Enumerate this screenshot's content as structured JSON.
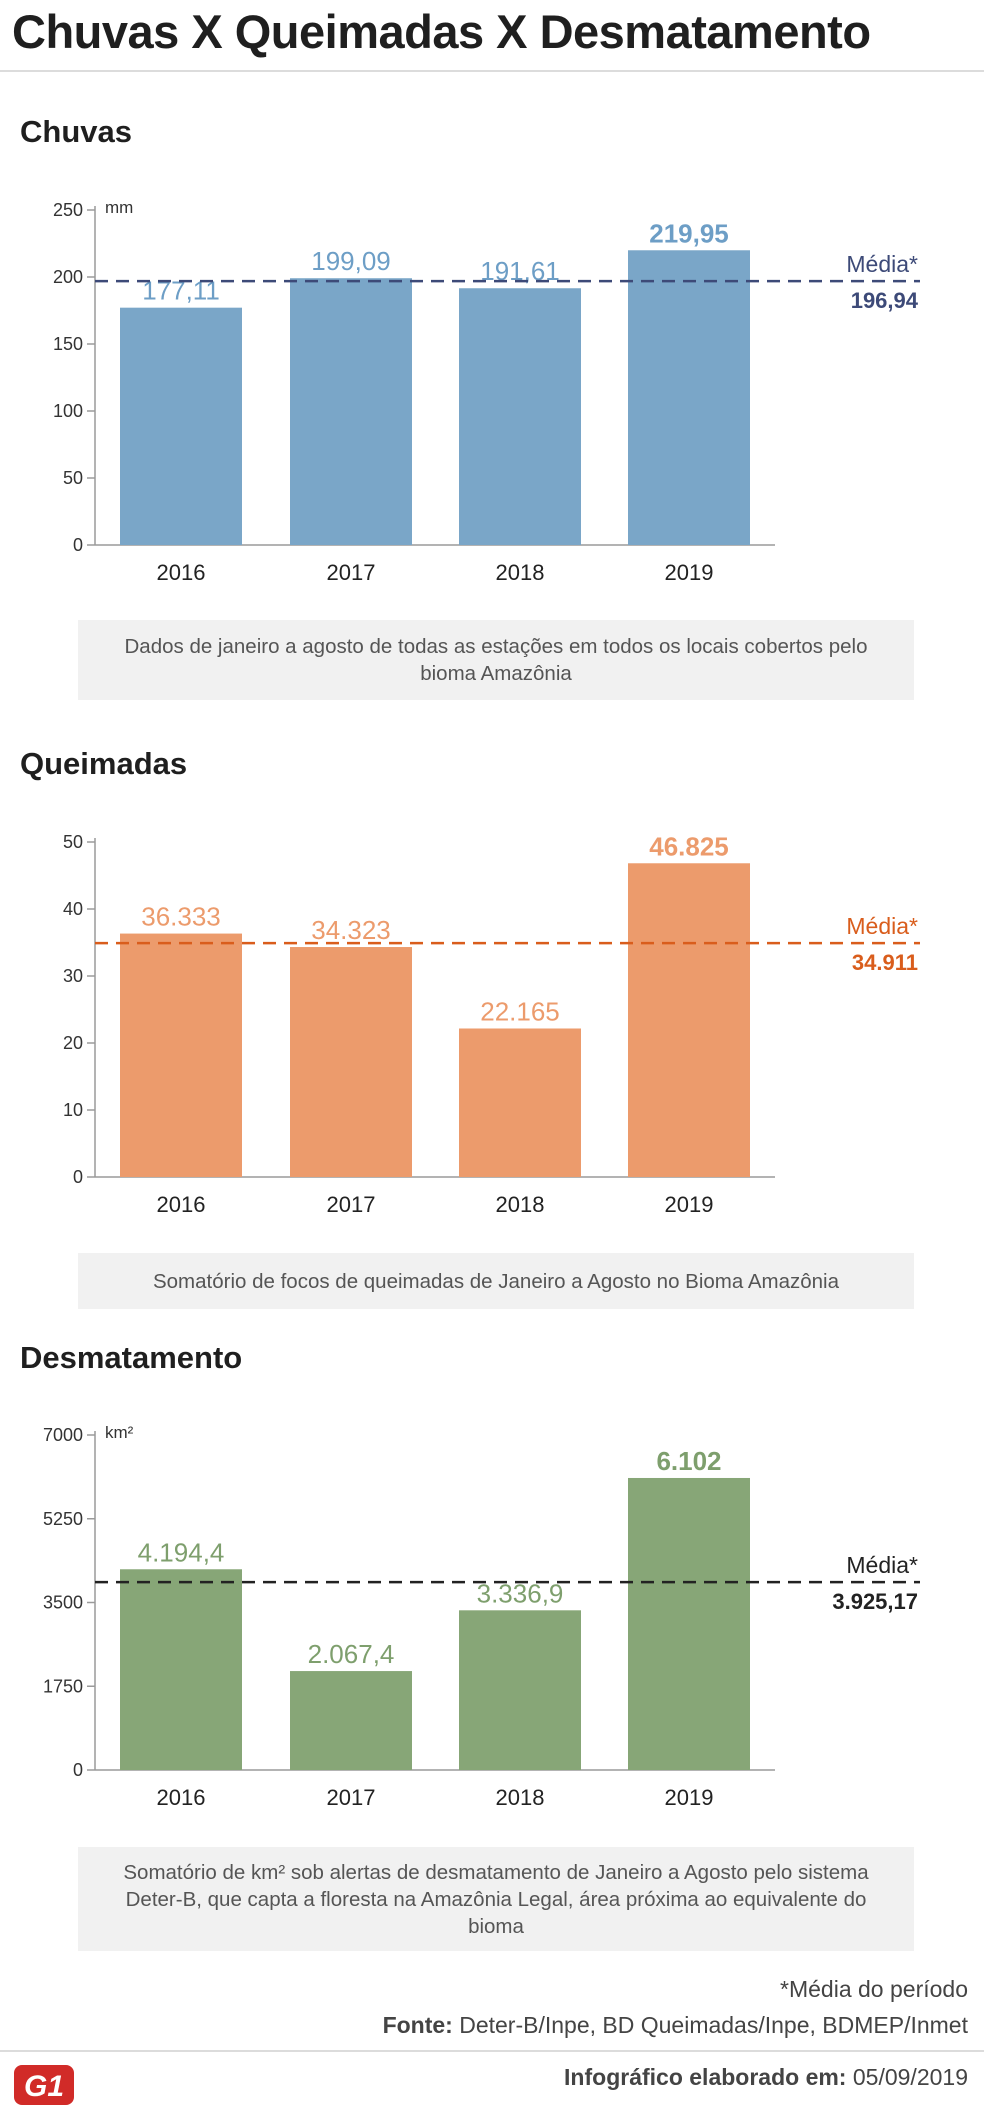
{
  "title": "Chuvas X Queimadas X Desmatamento",
  "sections": [
    {
      "title": "Chuvas",
      "note": "Dados de janeiro a agosto de todas as estações em todos os locais cobertos pelo bioma Amazônia"
    },
    {
      "title": "Queimadas",
      "note": "Somatório de focos de queimadas de Janeiro a Agosto no Bioma Amazônia"
    },
    {
      "title": "Desmatamento",
      "note": "Somatório de km² sob alertas de desmatamento de Janeiro a Agosto pelo sistema Deter-B, que capta a floresta na Amazônia Legal, área próxima ao equivalente do bioma"
    }
  ],
  "footer": {
    "footnote": "*Média do período",
    "source_label": "Fonte:",
    "source": "Deter-B/Inpe, BD Queimadas/Inpe, BDMEP/Inmet",
    "credit_label": "Infográfico elaborado em:",
    "credit_date": "05/09/2019",
    "logo_text": "G1"
  },
  "colors": {
    "chuvas_bar": "#7aa6c8",
    "chuvas_label": "#6d9ec6",
    "chuvas_avg": "#3d4a78",
    "queimadas_bar": "#ec9b6c",
    "queimadas_label": "#ec9b6c",
    "queimadas_avg": "#d95d1c",
    "desmatamento_bar": "#87a677",
    "desmatamento_label": "#7e9f6d",
    "desmatamento_avg": "#222222",
    "logo": "#d12b28"
  },
  "chart_data": [
    {
      "type": "bar",
      "title": "Chuvas",
      "unit": "mm",
      "categories": [
        "2016",
        "2017",
        "2018",
        "2019"
      ],
      "values": [
        177.11,
        199.09,
        191.61,
        219.95
      ],
      "value_labels": [
        "177,11",
        "199,09",
        "191,61",
        "219,95"
      ],
      "highlight_index": 3,
      "yticks": [
        0,
        50,
        100,
        150,
        200,
        250
      ],
      "ytick_labels": [
        "0",
        "50",
        "100",
        "150",
        "200",
        "250"
      ],
      "ylim": [
        0,
        250
      ],
      "average": 196.94,
      "average_label": "Média*",
      "average_value_label": "196,94"
    },
    {
      "type": "bar",
      "title": "Queimadas",
      "categories": [
        "2016",
        "2017",
        "2018",
        "2019"
      ],
      "values": [
        36.333,
        34.323,
        22.165,
        46.825
      ],
      "value_labels": [
        "36.333",
        "34.323",
        "22.165",
        "46.825"
      ],
      "highlight_index": 3,
      "yticks": [
        0,
        10,
        20,
        30,
        40,
        50
      ],
      "ytick_labels": [
        "0",
        "10",
        "20",
        "30",
        "40",
        "50"
      ],
      "ylim": [
        0,
        50
      ],
      "average": 34.911,
      "average_label": "Média*",
      "average_value_label": "34.911"
    },
    {
      "type": "bar",
      "title": "Desmatamento",
      "unit": "km²",
      "categories": [
        "2016",
        "2017",
        "2018",
        "2019"
      ],
      "values": [
        4194.4,
        2067.4,
        3336.9,
        6102
      ],
      "value_labels": [
        "4.194,4",
        "2.067,4",
        "3.336,9",
        "6.102"
      ],
      "highlight_index": 3,
      "yticks": [
        0,
        1750,
        3500,
        5250,
        7000
      ],
      "ytick_labels": [
        "0",
        "1750",
        "3500",
        "5250",
        "7000"
      ],
      "ylim": [
        0,
        7000
      ],
      "average": 3925.17,
      "average_label": "Média*",
      "average_value_label": "3.925,17"
    }
  ]
}
